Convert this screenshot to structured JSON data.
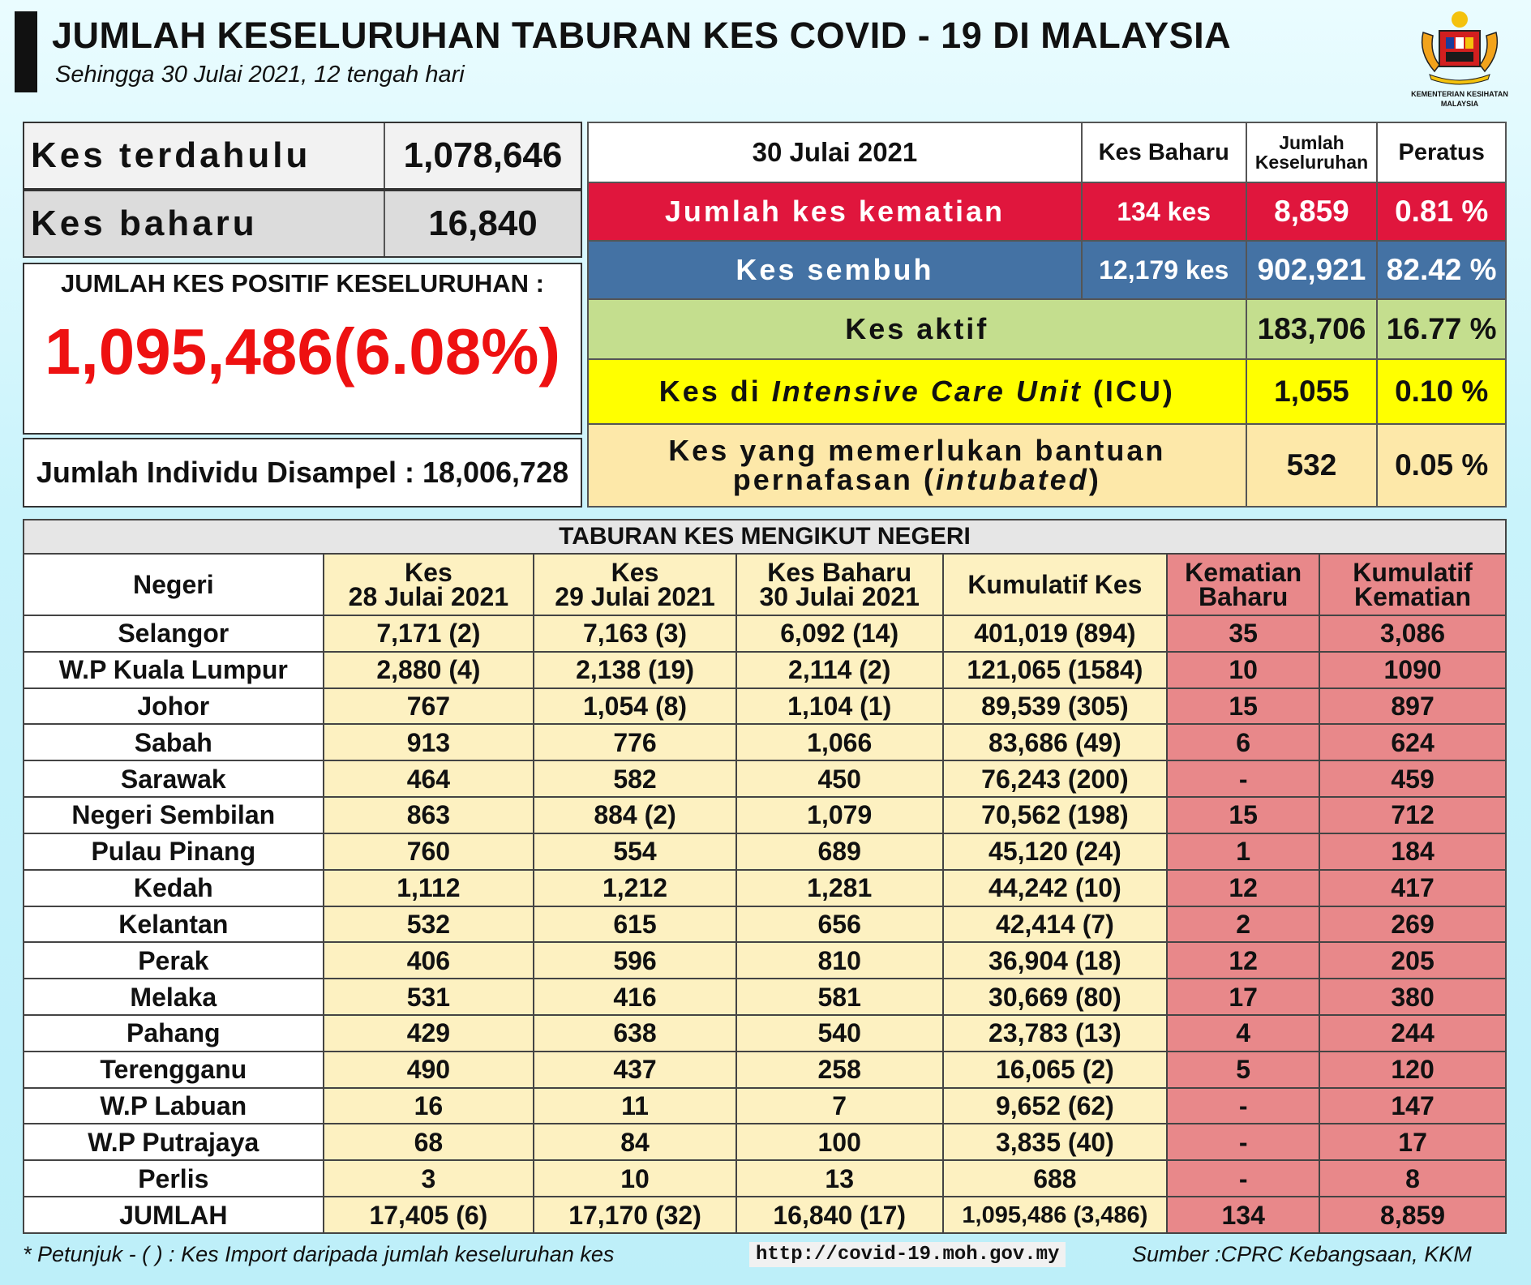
{
  "header": {
    "title": "JUMLAH KESELURUHAN TABURAN KES COVID - 19 DI MALAYSIA",
    "subtitle": "Sehingga 30 Julai 2021, 12 tengah hari",
    "logo_line1": "KEMENTERIAN KESIHATAN",
    "logo_line2": "MALAYSIA"
  },
  "left_panel": {
    "previous_label": "Kes terdahulu",
    "previous_value": "1,078,646",
    "new_label": "Kes baharu",
    "new_value": "16,840",
    "total_positive_label": "JUMLAH KES POSITIF KESELURUHAN :",
    "total_positive_value": "1,095,486",
    "total_positive_pct": "(6.08%)",
    "sampled_label": "Jumlah Individu Disampel : 18,006,728"
  },
  "summary": {
    "date": "30 Julai 2021",
    "col_new": "Kes Baharu",
    "col_total_line1": "Jumlah",
    "col_total_line2": "Keseluruhan",
    "col_pct": "Peratus",
    "rows": [
      {
        "label": "Jumlah kes kematian",
        "new": "134 kes",
        "total": "8,859",
        "pct": "0.81 %"
      },
      {
        "label": "Kes sembuh",
        "new": "12,179 kes",
        "total": "902,921",
        "pct": "82.42 %"
      },
      {
        "label": "Kes aktif",
        "total": "183,706",
        "pct": "16.77 %"
      },
      {
        "label_pre": "Kes di ",
        "label_italic": "Intensive Care Unit",
        "label_post": " (ICU)",
        "total": "1,055",
        "pct": "0.10 %"
      },
      {
        "label_line1": "Kes yang memerlukan bantuan",
        "label_line2_pre": "pernafasan (",
        "label_line2_italic": "intubated",
        "label_line2_post": ")",
        "total": "532",
        "pct": "0.05 %"
      }
    ],
    "colors": {
      "death": "#e0163d",
      "recovered": "#4472a4",
      "active": "#c4de8e",
      "icu": "#ffff00",
      "intubated": "#fde8a9"
    }
  },
  "state_table": {
    "title": "TABURAN KES MENGIKUT NEGERI",
    "headers": {
      "state": "Negeri",
      "d28_l1": "Kes",
      "d28_l2": "28 Julai 2021",
      "d29_l1": "Kes",
      "d29_l2": "29 Julai 2021",
      "d30_l1": "Kes Baharu",
      "d30_l2": "30 Julai 2021",
      "cum": "Kumulatif Kes",
      "death_l1": "Kematian",
      "death_l2": "Baharu",
      "cumdeath_l1": "Kumulatif",
      "cumdeath_l2": "Kematian"
    },
    "rows": [
      [
        "Selangor",
        "7,171 (2)",
        "7,163 (3)",
        "6,092 (14)",
        "401,019 (894)",
        "35",
        "3,086"
      ],
      [
        "W.P Kuala Lumpur",
        "2,880 (4)",
        "2,138 (19)",
        "2,114 (2)",
        "121,065 (1584)",
        "10",
        "1090"
      ],
      [
        "Johor",
        "767",
        "1,054 (8)",
        "1,104 (1)",
        "89,539 (305)",
        "15",
        "897"
      ],
      [
        "Sabah",
        "913",
        "776",
        "1,066",
        "83,686 (49)",
        "6",
        "624"
      ],
      [
        "Sarawak",
        "464",
        "582",
        "450",
        "76,243 (200)",
        "-",
        "459"
      ],
      [
        "Negeri Sembilan",
        "863",
        "884 (2)",
        "1,079",
        "70,562 (198)",
        "15",
        "712"
      ],
      [
        "Pulau Pinang",
        "760",
        "554",
        "689",
        "45,120 (24)",
        "1",
        "184"
      ],
      [
        "Kedah",
        "1,112",
        "1,212",
        "1,281",
        "44,242 (10)",
        "12",
        "417"
      ],
      [
        "Kelantan",
        "532",
        "615",
        "656",
        "42,414 (7)",
        "2",
        "269"
      ],
      [
        "Perak",
        "406",
        "596",
        "810",
        "36,904 (18)",
        "12",
        "205"
      ],
      [
        "Melaka",
        "531",
        "416",
        "581",
        "30,669 (80)",
        "17",
        "380"
      ],
      [
        "Pahang",
        "429",
        "638",
        "540",
        "23,783 (13)",
        "4",
        "244"
      ],
      [
        "Terengganu",
        "490",
        "437",
        "258",
        "16,065 (2)",
        "5",
        "120"
      ],
      [
        "W.P Labuan",
        "16",
        "11",
        "7",
        "9,652 (62)",
        "-",
        "147"
      ],
      [
        "W.P Putrajaya",
        "68",
        "84",
        "100",
        "3,835 (40)",
        "-",
        "17"
      ],
      [
        "Perlis",
        "3",
        "10",
        "13",
        "688",
        "-",
        "8"
      ],
      [
        "JUMLAH",
        "17,405 (6)",
        "17,170 (32)",
        "16,840 (17)",
        "1,095,486 (3,486)",
        "134",
        "8,859"
      ]
    ]
  },
  "footer": {
    "note": "* Petunjuk  - (   ) : Kes Import daripada jumlah keseluruhan kes",
    "url": "http://covid-19.moh.gov.my",
    "source": "Sumber :CPRC Kebangsaan,  KKM"
  }
}
